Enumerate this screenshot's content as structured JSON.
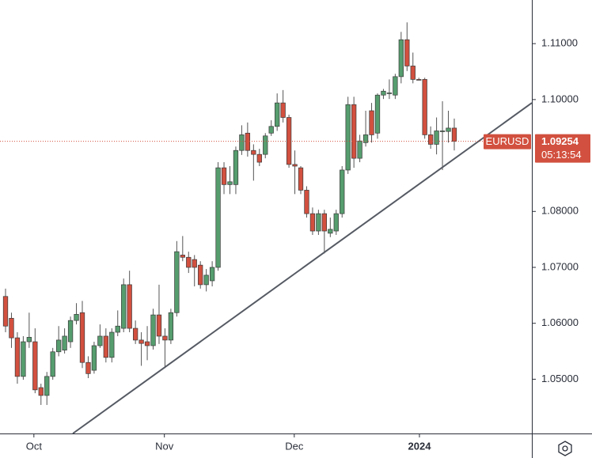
{
  "chart_data": {
    "type": "candlestick",
    "symbol": "EURUSD",
    "last_price": 1.09254,
    "countdown": "05:13:54",
    "up_color": "#569d6e",
    "down_color": "#d2503f",
    "categories": [
      null,
      null,
      null,
      null,
      null,
      null,
      null,
      null,
      null,
      null,
      null,
      null,
      null,
      null,
      null,
      null,
      null,
      null,
      null,
      null,
      null,
      null,
      null,
      null,
      null,
      null,
      null,
      null,
      null,
      null,
      null,
      null,
      null,
      null,
      null,
      null,
      null,
      null,
      null,
      null,
      null,
      null,
      null,
      null,
      null,
      null,
      null,
      null,
      null,
      null,
      null,
      null,
      null,
      null,
      null,
      null,
      null,
      null,
      null,
      null,
      null,
      null,
      null,
      null,
      null,
      null,
      null,
      null,
      null,
      null,
      null,
      null,
      null,
      null,
      null,
      null,
      null
    ],
    "open": [
      1.0648,
      1.0609,
      1.0574,
      1.0505,
      1.0567,
      1.0567,
      1.0485,
      1.0471,
      1.0505,
      1.0549,
      1.0552,
      1.0567,
      1.0605,
      1.0619,
      1.053,
      1.0516,
      1.056,
      1.0577,
      1.0539,
      1.0584,
      1.0591,
      1.0669,
      1.0591,
      1.057,
      1.0567,
      1.056,
      1.0615,
      1.0577,
      1.057,
      1.0619,
      1.0722,
      1.0718,
      1.0714,
      1.0704,
      1.0669,
      1.0676,
      1.07,
      1.0878,
      1.0848,
      1.0848,
      1.0909,
      1.094,
      1.0909,
      1.0902,
      1.0902,
      1.094,
      1.0952,
      1.0994,
      1.0968,
      1.0884,
      1.0878,
      1.0838,
      1.0796,
      1.0765,
      1.0796,
      1.0761,
      1.0765,
      1.0796,
      1.0874,
      1.0991,
      1.0895,
      1.0923,
      1.098,
      1.094,
      1.1008,
      1.1011,
      1.1008,
      1.1041,
      1.1107,
      1.106,
      1.1036,
      1.1036,
      1.0937,
      1.092,
      1.0943,
      1.0943,
      1.0949
    ],
    "high": [
      1.0662,
      1.0619,
      1.0584,
      1.0577,
      1.0619,
      1.0591,
      1.0492,
      1.0513,
      1.0556,
      1.0595,
      1.0591,
      1.0612,
      1.0636,
      1.064,
      1.0541,
      1.0567,
      1.0598,
      1.0591,
      1.0591,
      1.0623,
      1.068,
      1.0694,
      1.0605,
      1.0584,
      1.0595,
      1.0626,
      1.0669,
      1.0591,
      1.0626,
      1.0747,
      1.0756,
      1.0728,
      1.0722,
      1.0711,
      1.0697,
      1.0711,
      1.0888,
      1.0888,
      1.0881,
      1.0916,
      1.0954,
      1.0959,
      1.092,
      1.0912,
      1.094,
      1.0963,
      1.1011,
      1.1017,
      1.0973,
      1.0909,
      1.0881,
      1.0845,
      1.0807,
      1.0803,
      1.0803,
      1.0789,
      1.0803,
      1.0881,
      1.1005,
      1.1005,
      1.0937,
      1.098,
      1.0994,
      1.1011,
      1.1019,
      1.1036,
      1.1046,
      1.1121,
      1.1138,
      1.1084,
      1.1039,
      1.1039,
      1.0952,
      1.0968,
      1.0997,
      1.098,
      1.0966
    ],
    "low": [
      1.0584,
      1.0556,
      1.0492,
      1.0499,
      1.0556,
      1.0475,
      1.0454,
      1.0454,
      1.0499,
      1.0541,
      1.0546,
      1.0556,
      1.0598,
      1.052,
      1.0502,
      1.051,
      1.0556,
      1.053,
      1.053,
      1.0577,
      1.0584,
      1.0584,
      1.0563,
      1.0524,
      1.0534,
      1.0553,
      1.0563,
      1.052,
      1.0563,
      1.0612,
      1.0711,
      1.069,
      1.0666,
      1.0662,
      1.0657,
      1.0666,
      1.0694,
      1.0831,
      1.0831,
      1.0831,
      1.0901,
      1.0898,
      1.0855,
      1.0881,
      1.0895,
      1.0935,
      1.0944,
      1.0959,
      1.0878,
      1.0831,
      1.0831,
      1.0789,
      1.0758,
      1.0758,
      1.0725,
      1.0754,
      1.0758,
      1.0789,
      1.0867,
      1.0878,
      1.0888,
      1.0916,
      1.0923,
      1.093,
      1.1001,
      1.1001,
      1.1001,
      1.1029,
      1.1051,
      1.1029,
      1.1035,
      1.093,
      1.0912,
      1.0902,
      1.0874,
      1.0923,
      1.0909
    ],
    "close": [
      1.0595,
      1.0574,
      1.0505,
      1.0567,
      1.0575,
      1.0481,
      1.0471,
      1.0505,
      1.0549,
      1.057,
      1.0577,
      1.0605,
      1.0616,
      1.053,
      1.051,
      1.056,
      1.0577,
      1.0539,
      1.0584,
      1.0595,
      1.0669,
      1.0591,
      1.057,
      1.0564,
      1.056,
      1.0615,
      1.0577,
      1.057,
      1.0619,
      1.0728,
      1.0718,
      1.07,
      1.07,
      1.0669,
      1.0686,
      1.07,
      1.0878,
      1.0848,
      1.0853,
      1.0909,
      1.0937,
      1.0909,
      1.0902,
      1.0888,
      1.0935,
      1.0952,
      1.0994,
      1.0968,
      1.0884,
      1.0881,
      1.0838,
      1.0796,
      1.0765,
      1.0796,
      1.0765,
      1.0768,
      1.0796,
      1.0874,
      1.0991,
      1.0895,
      1.0926,
      1.0937,
      1.0937,
      1.1008,
      1.1015,
      1.1012,
      1.1041,
      1.1107,
      1.106,
      1.1036,
      1.1035,
      1.0937,
      1.092,
      1.0944,
      1.0944,
      1.0949,
      1.09254
    ],
    "trendline": {
      "x": [
        11.4,
        89.14
      ],
      "y": [
        1.0403,
        1.0994
      ]
    },
    "xlim": [
      -0.94,
      89.14
    ],
    "ylim": [
      1.0403,
      1.1178
    ],
    "yticks": [
      {
        "value": 1.05,
        "label": "1.05000"
      },
      {
        "value": 1.06,
        "label": "1.06000"
      },
      {
        "value": 1.07,
        "label": "1.07000"
      },
      {
        "value": 1.08,
        "label": "1.08000"
      },
      {
        "value": 1.1,
        "label": "1.10000"
      },
      {
        "value": 1.11,
        "label": "1.11000"
      }
    ],
    "xticks": [
      {
        "value": 4.8,
        "label": "Oct"
      },
      {
        "value": 26.9,
        "label": "Nov"
      },
      {
        "value": 48.9,
        "label": "Dec"
      },
      {
        "value": 70.1,
        "label": "2024"
      }
    ]
  }
}
